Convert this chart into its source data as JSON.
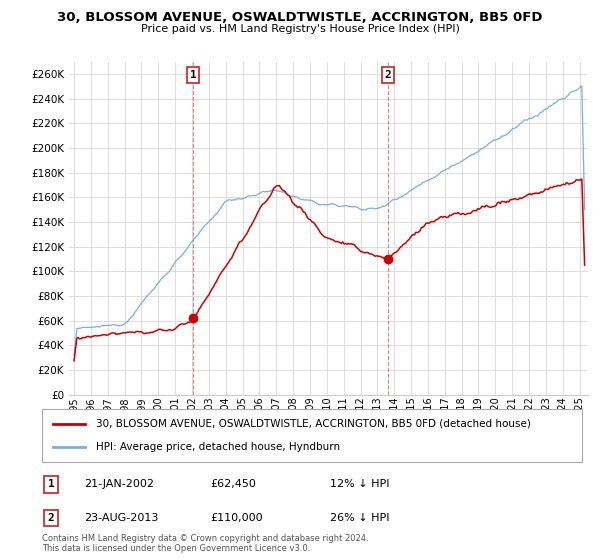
{
  "title": "30, BLOSSOM AVENUE, OSWALDTWISTLE, ACCRINGTON, BB5 0FD",
  "subtitle": "Price paid vs. HM Land Registry's House Price Index (HPI)",
  "ytick_values": [
    0,
    20000,
    40000,
    60000,
    80000,
    100000,
    120000,
    140000,
    160000,
    180000,
    200000,
    220000,
    240000,
    260000
  ],
  "ylim": [
    0,
    270000
  ],
  "xlim_start": 1994.7,
  "xlim_end": 2025.5,
  "sale1_x": 2002.055,
  "sale1_y": 62450,
  "sale1_label": "1",
  "sale1_date": "21-JAN-2002",
  "sale1_price": "£62,450",
  "sale1_hpi": "12% ↓ HPI",
  "sale2_x": 2013.644,
  "sale2_y": 110000,
  "sale2_label": "2",
  "sale2_date": "23-AUG-2013",
  "sale2_price": "£110,000",
  "sale2_hpi": "26% ↓ HPI",
  "red_line_color": "#cc0000",
  "blue_line_color": "#7aaedb",
  "grid_color": "#dddddd",
  "background_color": "#ffffff",
  "legend_property_label": "30, BLOSSOM AVENUE, OSWALDTWISTLE, ACCRINGTON, BB5 0FD (detached house)",
  "legend_hpi_label": "HPI: Average price, detached house, Hyndburn",
  "copyright_text": "Contains HM Land Registry data © Crown copyright and database right 2024.\nThis data is licensed under the Open Government Licence v3.0.",
  "xtick_years": [
    1995,
    1996,
    1997,
    1998,
    1999,
    2000,
    2001,
    2002,
    2003,
    2004,
    2005,
    2006,
    2007,
    2008,
    2009,
    2010,
    2011,
    2012,
    2013,
    2014,
    2015,
    2016,
    2017,
    2018,
    2019,
    2020,
    2021,
    2022,
    2023,
    2024,
    2025
  ]
}
